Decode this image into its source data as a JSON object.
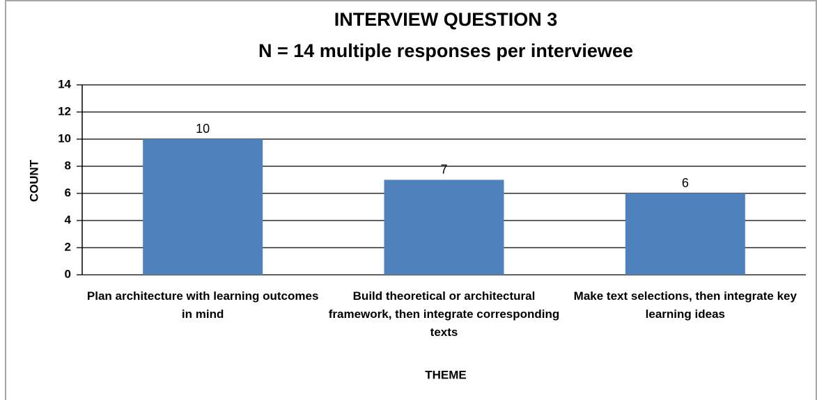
{
  "chart_data": {
    "type": "bar",
    "title": "INTERVIEW QUESTION 3",
    "subtitle": "N = 14 multiple responses per interviewee",
    "x_label": "THEME",
    "y_label": "COUNT",
    "categories": [
      "Plan architecture with learning outcomes in mind",
      "Build theoretical or architectural framework, then integrate corresponding texts",
      "Make text selections, then integrate key learning ideas"
    ],
    "values": [
      10,
      7,
      6
    ],
    "color": "#4f81bd",
    "ylim": [
      0,
      14
    ],
    "yticks": [
      0,
      2,
      4,
      6,
      8,
      10,
      12,
      14
    ],
    "grid": true
  }
}
